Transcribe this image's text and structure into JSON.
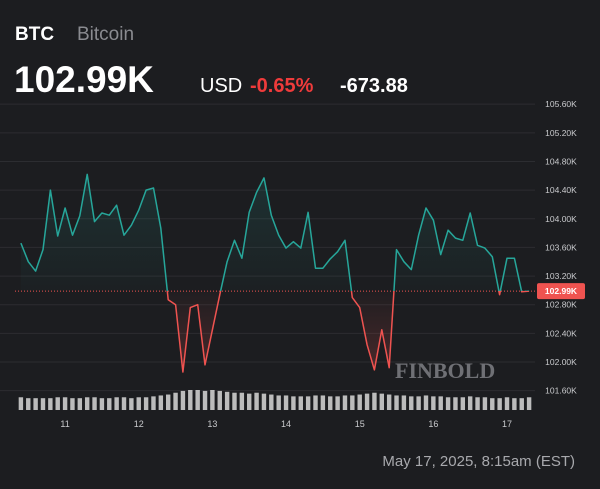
{
  "header": {
    "symbol": "BTC",
    "name": "Bitcoin",
    "price": "102.99K",
    "currency": "USD",
    "change_pct": "-0.65%",
    "change": "-673.88"
  },
  "chart_data": {
    "type": "baseline-line",
    "x": [
      10.4,
      10.5,
      10.6,
      10.7,
      10.8,
      10.9,
      11.0,
      11.1,
      11.2,
      11.3,
      11.4,
      11.5,
      11.6,
      11.7,
      11.8,
      11.9,
      12.0,
      12.1,
      12.2,
      12.3,
      12.4,
      12.5,
      12.6,
      12.7,
      12.8,
      12.9,
      13.0,
      13.1,
      13.2,
      13.3,
      13.4,
      13.5,
      13.6,
      13.7,
      13.8,
      13.9,
      14.0,
      14.1,
      14.2,
      14.3,
      14.4,
      14.5,
      14.6,
      14.7,
      14.8,
      14.9,
      15.0,
      15.1,
      15.2,
      15.3,
      15.4,
      15.5,
      15.6,
      15.7,
      15.8,
      15.9,
      16.0,
      16.1,
      16.2,
      16.3,
      16.4,
      16.5,
      16.6,
      16.7,
      16.8,
      16.9,
      17.0,
      17.1,
      17.2,
      17.3
    ],
    "values": [
      103.66,
      103.4,
      103.27,
      103.57,
      104.4,
      103.76,
      104.15,
      103.77,
      104.04,
      104.62,
      103.96,
      104.08,
      104.05,
      104.19,
      103.77,
      103.91,
      104.12,
      104.4,
      104.43,
      103.87,
      102.87,
      102.8,
      101.86,
      102.76,
      102.8,
      101.96,
      102.45,
      102.94,
      103.4,
      103.7,
      103.45,
      104.09,
      104.37,
      104.57,
      104.05,
      103.77,
      103.59,
      103.68,
      103.59,
      104.09,
      103.31,
      103.31,
      103.44,
      103.54,
      103.7,
      102.9,
      102.76,
      102.24,
      101.89,
      102.45,
      101.92,
      103.57,
      103.4,
      103.29,
      103.77,
      104.15,
      103.98,
      103.5,
      103.84,
      103.73,
      103.7,
      104.08,
      103.63,
      103.59,
      103.47,
      102.94,
      103.45,
      103.45,
      102.98,
      102.99
    ],
    "volume": [
      14,
      13,
      13,
      13,
      13,
      14,
      14,
      13,
      13,
      14,
      14,
      13,
      13,
      14,
      14,
      13,
      14,
      14,
      15,
      16,
      17,
      19,
      21,
      22,
      22,
      21,
      22,
      21,
      20,
      19,
      19,
      18,
      19,
      18,
      17,
      16,
      16,
      15,
      15,
      15,
      16,
      16,
      15,
      15,
      16,
      16,
      17,
      18,
      19,
      18,
      17,
      16,
      16,
      15,
      15,
      16,
      15,
      15,
      14,
      14,
      14,
      15,
      14,
      14,
      13,
      13,
      14,
      13,
      13,
      14
    ],
    "baseline": {
      "value": 102.99,
      "label": "102.99K"
    },
    "up_color": "#26a69a",
    "down_color": "#ef5350",
    "volume_color": "#d8d8d8",
    "xlim": [
      10.32,
      17.38
    ],
    "xticks": [
      11,
      12,
      13,
      14,
      15,
      16,
      17
    ],
    "ylim": [
      101.33,
      105.77
    ],
    "yticks": [
      {
        "value": 101.6,
        "label": "101.60K"
      },
      {
        "value": 102.0,
        "label": "102.00K"
      },
      {
        "value": 102.4,
        "label": "102.40K"
      },
      {
        "value": 102.8,
        "label": "102.80K"
      },
      {
        "value": 103.2,
        "label": "103.20K"
      },
      {
        "value": 103.6,
        "label": "103.60K"
      },
      {
        "value": 104.0,
        "label": "104.00K"
      },
      {
        "value": 104.4,
        "label": "104.40K"
      },
      {
        "value": 104.8,
        "label": "104.80K"
      },
      {
        "value": 105.2,
        "label": "105.20K"
      },
      {
        "value": 105.6,
        "label": "105.60K"
      }
    ],
    "grid": true
  },
  "watermark": "FINBOLD",
  "timestamp": "May 17, 2025, 8:15am (EST)"
}
